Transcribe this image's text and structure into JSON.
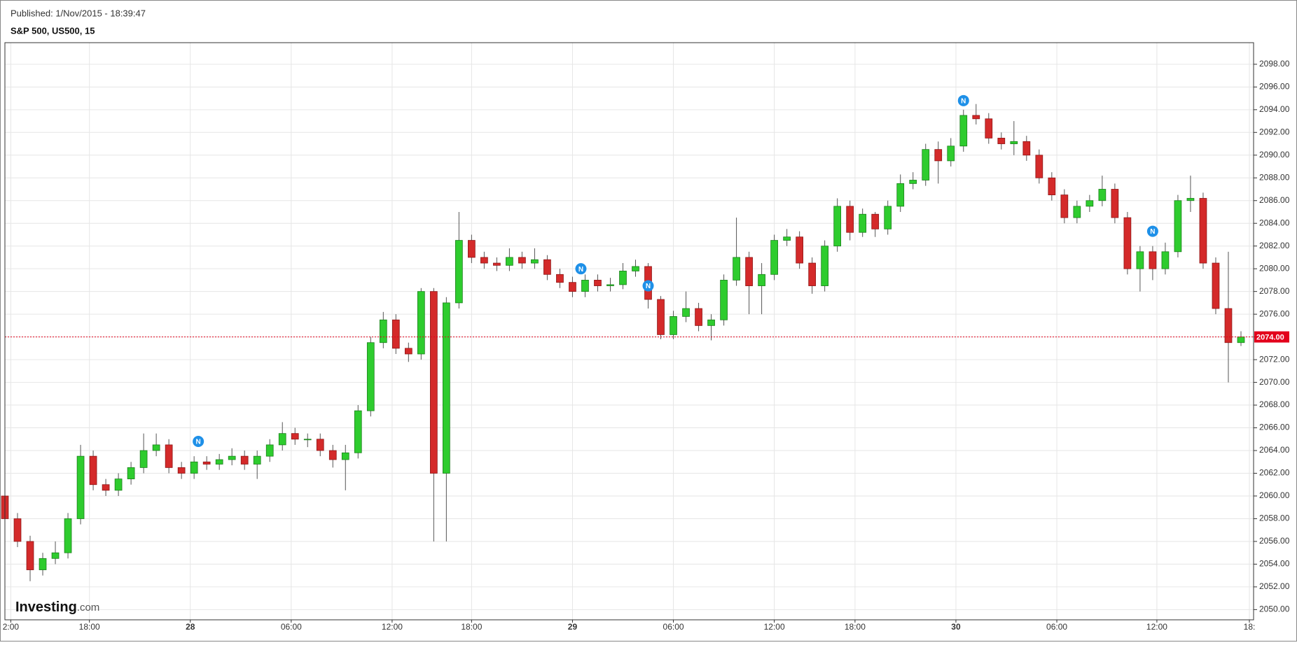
{
  "published": "Published: 1/Nov/2015 - 18:39:47",
  "logo": {
    "name": "Investing",
    "suffix": ".com"
  },
  "chart_data": {
    "type": "candlestick",
    "title": "S&P 500, US500, 15",
    "up_color": "#2ecc2e",
    "down_color": "#d42a2a",
    "grid": true,
    "xlim": [
      0,
      297
    ],
    "xticks": [
      {
        "value": 1.4,
        "label": "2:00"
      },
      {
        "value": 20.1,
        "label": "18:00"
      },
      {
        "value": 44.1,
        "label": "28"
      },
      {
        "value": 68.1,
        "label": "06:00"
      },
      {
        "value": 92.1,
        "label": "12:00"
      },
      {
        "value": 111,
        "label": "18:00"
      },
      {
        "value": 135,
        "label": "29"
      },
      {
        "value": 159,
        "label": "06:00"
      },
      {
        "value": 183,
        "label": "12:00"
      },
      {
        "value": 202.2,
        "label": "18:00"
      },
      {
        "value": 226.2,
        "label": "30"
      },
      {
        "value": 250.2,
        "label": "06:00"
      },
      {
        "value": 274,
        "label": "12:00"
      },
      {
        "value": 296,
        "label": "18:"
      }
    ],
    "ylim": [
      2049.1,
      2099.9
    ],
    "yticks": [
      {
        "value": 2050,
        "label": "2050.00"
      },
      {
        "value": 2052,
        "label": "2052.00"
      },
      {
        "value": 2054,
        "label": "2054.00"
      },
      {
        "value": 2056,
        "label": "2056.00"
      },
      {
        "value": 2058,
        "label": "2058.00"
      },
      {
        "value": 2060,
        "label": "2060.00"
      },
      {
        "value": 2062,
        "label": "2062.00"
      },
      {
        "value": 2064,
        "label": "2064.00"
      },
      {
        "value": 2066,
        "label": "2066.00"
      },
      {
        "value": 2068,
        "label": "2068.00"
      },
      {
        "value": 2070,
        "label": "2070.00"
      },
      {
        "value": 2072,
        "label": "2072.00"
      },
      {
        "value": 2074,
        "label": "2074.00"
      },
      {
        "value": 2076,
        "label": "2076.00"
      },
      {
        "value": 2078,
        "label": "2078.00"
      },
      {
        "value": 2080,
        "label": "2080.00"
      },
      {
        "value": 2082,
        "label": "2082.00"
      },
      {
        "value": 2084,
        "label": "2084.00"
      },
      {
        "value": 2086,
        "label": "2086.00"
      },
      {
        "value": 2088,
        "label": "2088.00"
      },
      {
        "value": 2090,
        "label": "2090.00"
      },
      {
        "value": 2092,
        "label": "2092.00"
      },
      {
        "value": 2094,
        "label": "2094.00"
      },
      {
        "value": 2096,
        "label": "2096.00"
      },
      {
        "value": 2098,
        "label": "2098.00"
      }
    ],
    "last_price": {
      "value": 2074,
      "label": "2074.00",
      "color": "#e3001b"
    },
    "news_markers": {
      "label": "N",
      "color": "#1e90e8",
      "x": [
        46,
        137,
        153,
        228,
        273
      ],
      "y": [
        2064.8,
        2080,
        2078.5,
        2094.8,
        2083.3
      ]
    },
    "x": [
      0,
      3,
      6,
      9,
      12,
      15,
      18,
      21,
      24,
      27,
      30,
      33,
      36,
      39,
      42,
      45,
      48,
      51,
      54,
      57,
      60,
      63,
      66,
      69,
      72,
      75,
      78,
      81,
      84,
      87,
      90,
      93,
      96,
      99,
      102,
      105,
      108,
      111,
      114,
      117,
      120,
      123,
      126,
      129,
      132,
      135,
      138,
      141,
      144,
      147,
      150,
      153,
      156,
      159,
      162,
      165,
      168,
      171,
      174,
      177,
      180,
      183,
      186,
      189,
      192,
      195,
      198,
      201,
      204,
      207,
      210,
      213,
      216,
      219,
      222,
      225,
      228,
      231,
      234,
      237,
      240,
      243,
      246,
      249,
      252,
      255,
      258,
      261,
      264,
      267,
      270,
      273,
      276,
      279,
      282,
      285,
      288,
      291,
      294
    ],
    "open": [
      2060,
      2058,
      2056,
      2053.5,
      2054.5,
      2055,
      2058,
      2063.5,
      2061,
      2060.5,
      2061.5,
      2062.5,
      2064,
      2064.5,
      2062.5,
      2062,
      2063,
      2062.8,
      2063.2,
      2063.5,
      2062.8,
      2063.5,
      2064.5,
      2065.5,
      2065,
      2065,
      2064,
      2063.2,
      2063.8,
      2067.5,
      2073.5,
      2075.5,
      2073,
      2072.5,
      2078,
      2062,
      2077,
      2082.5,
      2081,
      2080.5,
      2080.3,
      2081,
      2080.5,
      2080.8,
      2079.5,
      2078.8,
      2078,
      2079,
      2078.5,
      2078.6,
      2079.8,
      2080.2,
      2077.3,
      2074.2,
      2075.8,
      2076.5,
      2075,
      2075.5,
      2079,
      2081,
      2078.5,
      2079.5,
      2082.5,
      2082.8,
      2080.5,
      2078.5,
      2082,
      2085.5,
      2083.2,
      2084.8,
      2083.5,
      2085.5,
      2087.5,
      2087.8,
      2090.5,
      2089.5,
      2090.8,
      2093.5,
      2093.2,
      2091.5,
      2091,
      2091.2,
      2090,
      2088,
      2086.5,
      2084.5,
      2085.5,
      2086,
      2087,
      2084.5,
      2080,
      2081.5,
      2080,
      2081.5,
      2086,
      2086.2,
      2080.5,
      2076.5,
      2073.5
    ],
    "high": [
      2060.5,
      2058.5,
      2056.5,
      2055,
      2056,
      2058.5,
      2064.5,
      2064,
      2061.5,
      2062,
      2063,
      2065.5,
      2065.5,
      2065,
      2063,
      2063.5,
      2063.5,
      2063.7,
      2064.2,
      2064,
      2064,
      2065,
      2066.5,
      2066,
      2065.5,
      2065.5,
      2064.5,
      2064.5,
      2068,
      2074,
      2076.2,
      2076,
      2073.5,
      2078.3,
      2078.3,
      2077.5,
      2085,
      2083,
      2081.5,
      2081,
      2081.8,
      2081.5,
      2081.8,
      2081.2,
      2080,
      2079.3,
      2079.5,
      2079.5,
      2079.2,
      2080.5,
      2080.8,
      2080.5,
      2077.6,
      2076.3,
      2078,
      2077,
      2076,
      2079.5,
      2084.5,
      2081.5,
      2080.5,
      2083,
      2083.5,
      2083.3,
      2081,
      2082.5,
      2086.2,
      2086,
      2085.3,
      2085,
      2086,
      2088.3,
      2088.5,
      2091,
      2091.2,
      2091.5,
      2094,
      2094.5,
      2093.7,
      2092,
      2093,
      2091.7,
      2090.5,
      2088.5,
      2087,
      2086,
      2086.5,
      2088.2,
      2087.5,
      2085,
      2082,
      2082,
      2082.3,
      2086.5,
      2088.2,
      2086.7,
      2081,
      2081.5,
      2074.5
    ],
    "low": [
      2057.5,
      2055.5,
      2052.5,
      2053,
      2054,
      2054.5,
      2057.5,
      2060.5,
      2060,
      2060,
      2061,
      2062,
      2063.5,
      2062,
      2061.5,
      2061.5,
      2062.3,
      2062.3,
      2062.7,
      2062.3,
      2061.5,
      2063,
      2064,
      2064.5,
      2064.3,
      2063.5,
      2062.5,
      2060.5,
      2063.3,
      2067,
      2073,
      2072.5,
      2071.8,
      2072,
      2056,
      2056,
      2076.5,
      2080.5,
      2080,
      2079.8,
      2079.8,
      2080,
      2080,
      2079,
      2078.3,
      2077.5,
      2077.5,
      2078,
      2078,
      2078.2,
      2079.3,
      2076.5,
      2073.8,
      2073.8,
      2075.3,
      2074.5,
      2073.7,
      2075,
      2078.5,
      2076,
      2076,
      2079,
      2082,
      2080,
      2077.8,
      2078,
      2081.5,
      2082.5,
      2082.8,
      2082.8,
      2083,
      2085,
      2087,
      2087.3,
      2087.5,
      2089,
      2090.3,
      2092.7,
      2091,
      2090.5,
      2090,
      2089.5,
      2087.5,
      2086,
      2084,
      2084,
      2085,
      2085.5,
      2084,
      2079.5,
      2078,
      2079,
      2079.5,
      2081,
      2085,
      2080,
      2076,
      2070,
      2073.2
    ],
    "close": [
      2058,
      2056,
      2053.5,
      2054.5,
      2055,
      2058,
      2063.5,
      2061,
      2060.5,
      2061.5,
      2062.5,
      2064,
      2064.5,
      2062.5,
      2062,
      2063,
      2062.8,
      2063.2,
      2063.5,
      2062.8,
      2063.5,
      2064.5,
      2065.5,
      2065,
      2065,
      2064,
      2063.2,
      2063.8,
      2067.5,
      2073.5,
      2075.5,
      2073,
      2072.5,
      2078,
      2062,
      2077,
      2082.5,
      2081,
      2080.5,
      2080.3,
      2081,
      2080.5,
      2080.8,
      2079.5,
      2078.8,
      2078,
      2079,
      2078.5,
      2078.6,
      2079.8,
      2080.2,
      2077.3,
      2074.2,
      2075.8,
      2076.5,
      2075,
      2075.5,
      2079,
      2081,
      2078.5,
      2079.5,
      2082.5,
      2082.8,
      2080.5,
      2078.5,
      2082,
      2085.5,
      2083.2,
      2084.8,
      2083.5,
      2085.5,
      2087.5,
      2087.8,
      2090.5,
      2089.5,
      2090.8,
      2093.5,
      2093.2,
      2091.5,
      2091,
      2091.2,
      2090,
      2088,
      2086.5,
      2084.5,
      2085.5,
      2086,
      2087,
      2084.5,
      2080,
      2081.5,
      2080,
      2081.5,
      2086,
      2086.2,
      2080.5,
      2076.5,
      2073.5,
      2074
    ]
  }
}
